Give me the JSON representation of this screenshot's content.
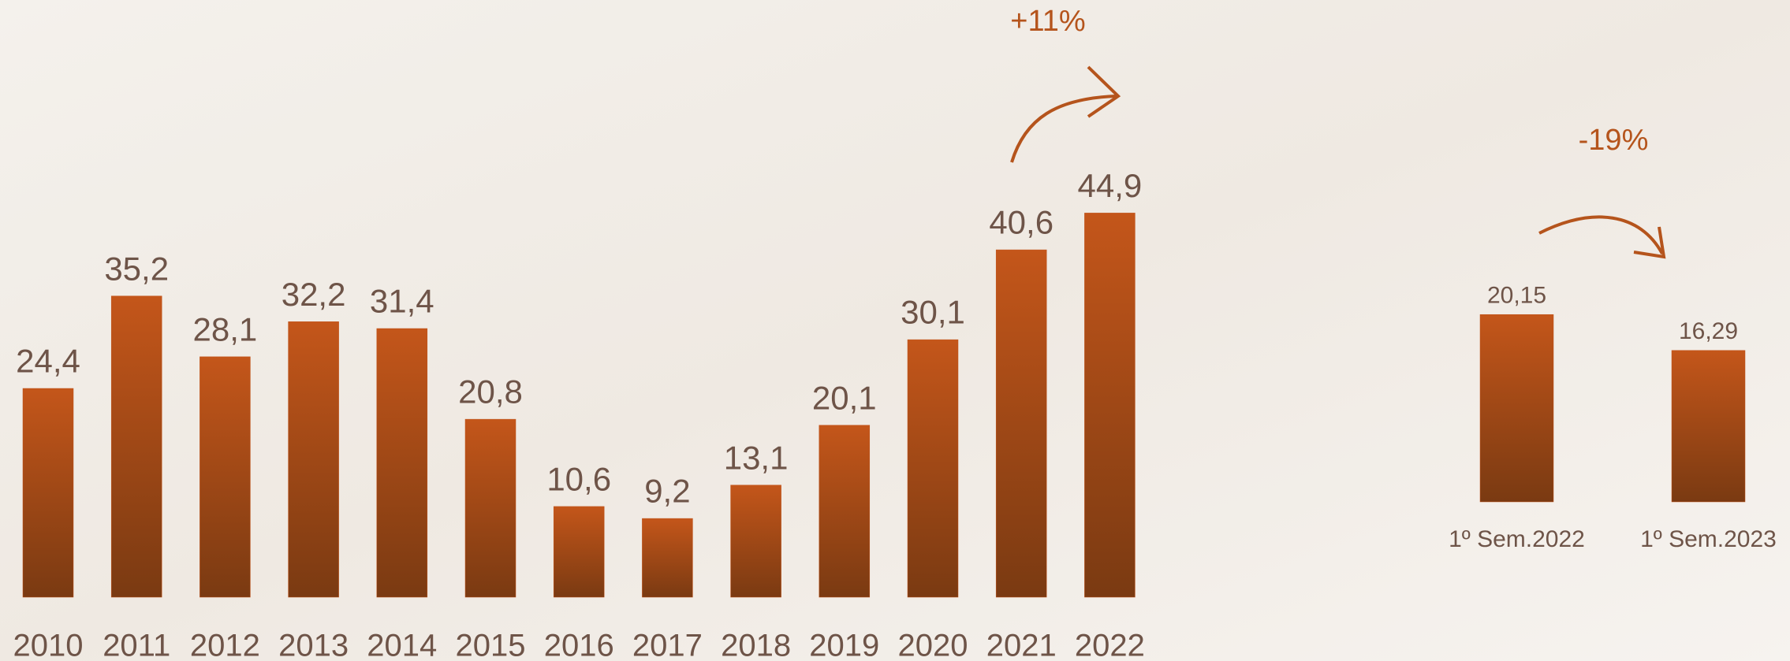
{
  "chart_data": [
    {
      "type": "bar",
      "categories": [
        "2010",
        "2011",
        "2012",
        "2013",
        "2014",
        "2015",
        "2016",
        "2017",
        "2018",
        "2019",
        "2020",
        "2021",
        "2022"
      ],
      "values": [
        24.4,
        35.2,
        28.1,
        32.2,
        31.4,
        20.8,
        10.6,
        9.2,
        13.1,
        20.1,
        30.1,
        40.6,
        44.9
      ],
      "value_labels": [
        "24,4",
        "35,2",
        "28,1",
        "32,2",
        "31,4",
        "20,8",
        "10,6",
        "9,2",
        "13,1",
        "20,1",
        "30,1",
        "40,6",
        "44,9"
      ],
      "color": "#c0531a",
      "annotations": [
        "+11%"
      ]
    },
    {
      "type": "bar",
      "categories": [
        "1º Sem.2022",
        "1º Sem.2023"
      ],
      "values": [
        20.15,
        16.29
      ],
      "value_labels": [
        "20,15",
        "16,29"
      ],
      "color": "#c0531a",
      "annotations": [
        "-19%"
      ]
    }
  ]
}
